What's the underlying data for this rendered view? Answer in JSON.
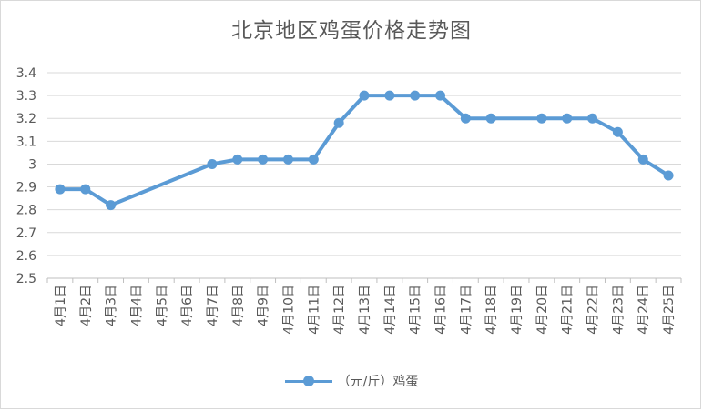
{
  "chart_data": {
    "type": "line",
    "title": "北京地区鸡蛋价格走势图",
    "xlabel": "",
    "ylabel": "",
    "ylim": [
      2.5,
      3.4
    ],
    "yticks": [
      "2.5",
      "2.6",
      "2.7",
      "2.8",
      "2.9",
      "3",
      "3.1",
      "3.2",
      "3.3",
      "3.4"
    ],
    "categories": [
      "4月1日",
      "4月2日",
      "4月3日",
      "4月4日",
      "4月5日",
      "4月6日",
      "4月7日",
      "4月8日",
      "4月9日",
      "4月10日",
      "4月11日",
      "4月12日",
      "4月13日",
      "4月14日",
      "4月15日",
      "4月16日",
      "4月17日",
      "4月18日",
      "4月19日",
      "4月20日",
      "4月21日",
      "4月22日",
      "4月23日",
      "4月24日",
      "4月25日"
    ],
    "series": [
      {
        "name": "（元/斤）鸡蛋",
        "color": "#5b9bd5",
        "values": [
          2.89,
          2.89,
          2.82,
          null,
          null,
          null,
          3.0,
          3.02,
          3.02,
          3.02,
          3.02,
          3.18,
          3.3,
          3.3,
          3.3,
          3.3,
          3.2,
          3.2,
          null,
          3.2,
          3.2,
          3.2,
          3.14,
          3.02,
          2.95
        ]
      }
    ],
    "grid": true,
    "legend_position": "bottom",
    "colors": {
      "gridline": "#d9d9d9",
      "text": "#595959",
      "series": "#5b9bd5"
    }
  }
}
